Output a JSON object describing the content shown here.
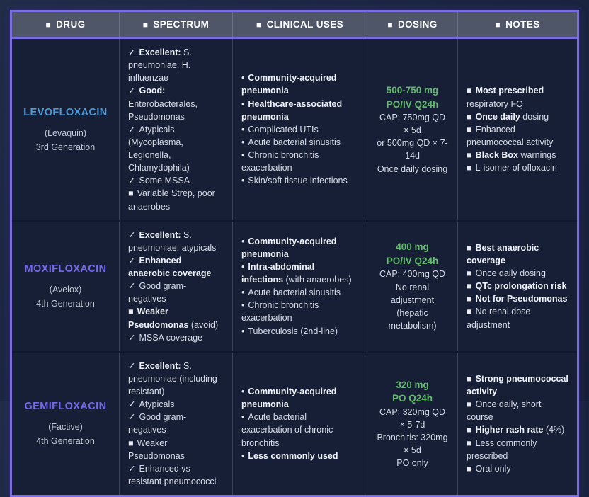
{
  "accent_colors": {
    "border_purple": "#7a6ce2",
    "header_bg": "#4e5667",
    "drug_blue": "#4b9bd8",
    "drug_purple": "#7668ec",
    "dose_green": "#62bb6a",
    "cell_bg": "#161f36"
  },
  "headers": {
    "bullet": "■",
    "drug": "DRUG",
    "spectrum": "SPECTRUM",
    "clinical": "CLINICAL USES",
    "dosing": "DOSING",
    "notes": "NOTES"
  },
  "rows": [
    {
      "drug": {
        "name": "LEVOFLOXACIN",
        "brand": "(Levaquin)",
        "gen": "3rd Generation"
      },
      "spectrum": [
        {
          "pre": "✓",
          "b": "Excellent:",
          "t": " S. pneumoniae, H. influenzae"
        },
        {
          "pre": "✓",
          "b": "Good:",
          "t": " Enterobacterales, Pseudomonas"
        },
        {
          "pre": "✓",
          "t": "Atypicals (Mycoplasma, Legionella, Chlamydophila)"
        },
        {
          "pre": "✓",
          "t": "Some MSSA"
        },
        {
          "pre": "■",
          "t": "Variable Strep, poor anaerobes"
        }
      ],
      "clinical": [
        {
          "pre": "•",
          "b": "Community-acquired pneumonia"
        },
        {
          "pre": "•",
          "b": "Healthcare-associated pneumonia"
        },
        {
          "pre": "•",
          "t": "Complicated UTIs"
        },
        {
          "pre": "•",
          "t": "Acute bacterial sinusitis"
        },
        {
          "pre": "•",
          "t": "Chronic bronchitis exacerbation"
        },
        {
          "pre": "•",
          "t": "Skin/soft tissue infections"
        }
      ],
      "dosing": {
        "green": [
          "500-750 mg",
          "PO/IV Q24h"
        ],
        "lines": [
          "CAP: 750mg QD × 5d",
          "or 500mg QD × 7-14d",
          "Once daily dosing"
        ]
      },
      "notes": [
        {
          "pre": "■",
          "b": "Most prescribed",
          "t": " respiratory FQ"
        },
        {
          "pre": "■",
          "b": "Once daily",
          "t": " dosing"
        },
        {
          "pre": "■",
          "t": "Enhanced pneumococcal activity"
        },
        {
          "pre": "■",
          "b": "Black Box",
          "t": " warnings"
        },
        {
          "pre": "■",
          "t": "L-isomer of ofloxacin"
        }
      ]
    },
    {
      "drug": {
        "name": "MOXIFLOXACIN",
        "brand": "(Avelox)",
        "gen": "4th Generation"
      },
      "spectrum": [
        {
          "pre": "✓",
          "b": "Excellent:",
          "t": " S. pneumoniae, atypicals"
        },
        {
          "pre": "✓",
          "b": "Enhanced anaerobic coverage"
        },
        {
          "pre": "✓",
          "t": "Good gram-negatives"
        },
        {
          "pre": "■",
          "b": "Weaker Pseudomonas",
          "t": " (avoid)"
        },
        {
          "pre": "✓",
          "t": "MSSA coverage"
        }
      ],
      "clinical": [
        {
          "pre": "•",
          "b": "Community-acquired pneumonia"
        },
        {
          "pre": "•",
          "b": "Intra-abdominal infections",
          "t": " (with anaerobes)"
        },
        {
          "pre": "•",
          "t": "Acute bacterial sinusitis"
        },
        {
          "pre": "•",
          "t": "Chronic bronchitis exacerbation"
        },
        {
          "pre": "•",
          "t": "Tuberculosis (2nd-line)"
        }
      ],
      "dosing": {
        "green": [
          "400 mg",
          "PO/IV Q24h"
        ],
        "lines": [
          "CAP: 400mg QD",
          "No renal adjustment (hepatic metabolism)"
        ]
      },
      "notes": [
        {
          "pre": "■",
          "b": "Best anaerobic coverage"
        },
        {
          "pre": "■",
          "t": "Once daily dosing"
        },
        {
          "pre": "■",
          "b": "QTc prolongation risk"
        },
        {
          "pre": "■",
          "b": "Not for Pseudomonas"
        },
        {
          "pre": "■",
          "t": "No renal dose adjustment"
        }
      ]
    },
    {
      "drug": {
        "name": "GEMIFLOXACIN",
        "brand": "(Factive)",
        "gen": "4th Generation"
      },
      "spectrum": [
        {
          "pre": "✓",
          "b": "Excellent:",
          "t": " S. pneumoniae (including resistant)"
        },
        {
          "pre": "✓",
          "t": "Atypicals"
        },
        {
          "pre": "✓",
          "t": "Good gram-negatives"
        },
        {
          "pre": "■",
          "t": "Weaker Pseudomonas"
        },
        {
          "pre": "✓",
          "t": "Enhanced vs resistant pneumococci"
        }
      ],
      "clinical": [
        {
          "pre": "•",
          "b": "Community-acquired pneumonia"
        },
        {
          "pre": "•",
          "t": "Acute bacterial exacerbation of chronic bronchitis"
        },
        {
          "pre": "•",
          "b": "Less commonly used"
        }
      ],
      "dosing": {
        "green": [
          "320 mg",
          "PO Q24h"
        ],
        "lines": [
          "CAP: 320mg QD × 5-7d",
          "Bronchitis: 320mg × 5d",
          "PO only"
        ]
      },
      "notes": [
        {
          "pre": "■",
          "b": "Strong pneumococcal activity"
        },
        {
          "pre": "■",
          "t": "Once daily, short course"
        },
        {
          "pre": "■",
          "b": "Higher rash rate",
          "t": " (4%)"
        },
        {
          "pre": "■",
          "t": "Less commonly prescribed"
        },
        {
          "pre": "■",
          "t": "Oral only"
        }
      ]
    }
  ]
}
